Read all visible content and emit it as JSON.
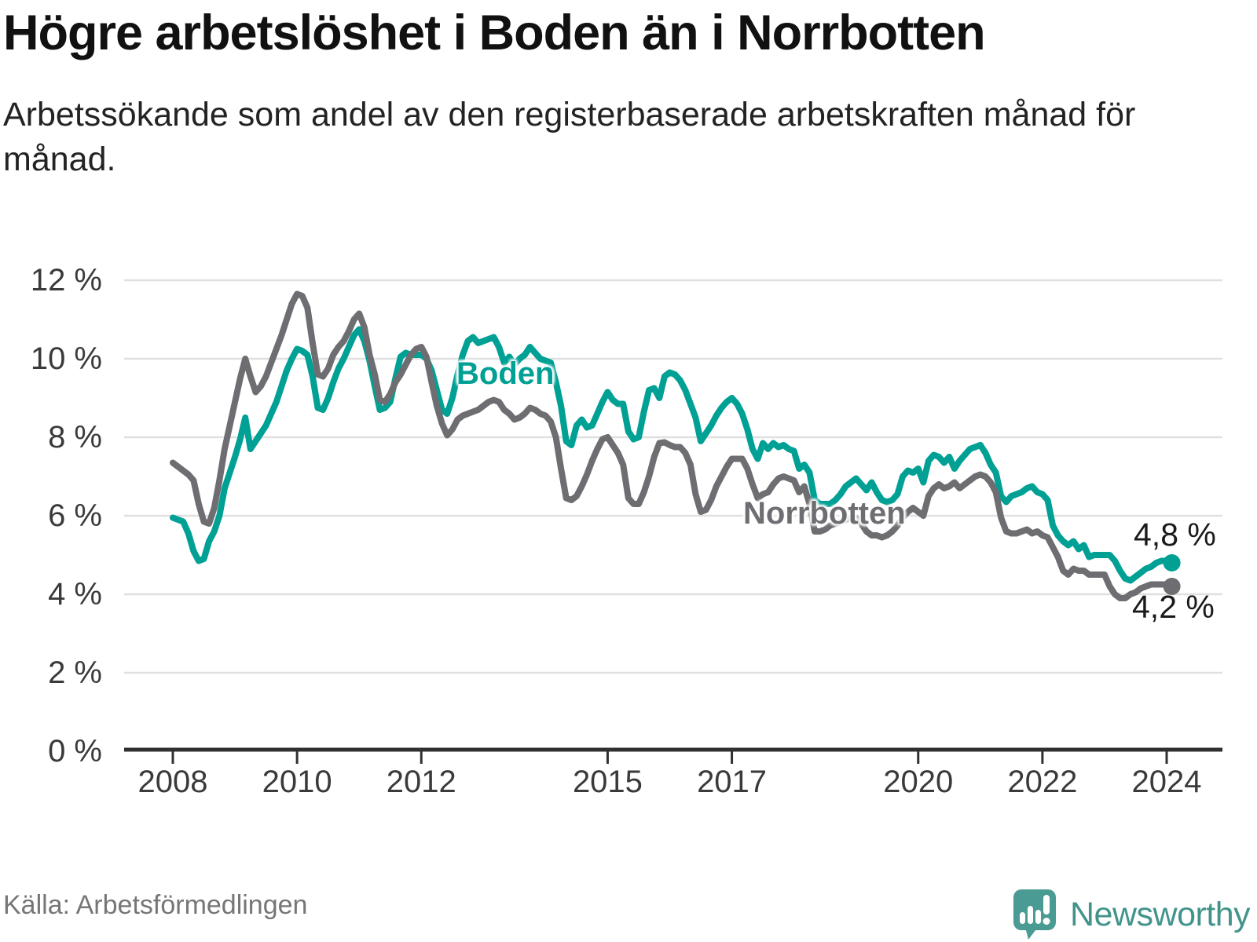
{
  "header": {
    "title": "Högre arbetslöshet i Boden än i Norrbotten",
    "subtitle": "Arbetssökande som andel av den registerbaserade arbetskraften månad för månad."
  },
  "footer": {
    "source": "Källa: Arbetsförmedlingen",
    "brand": "Newsworthy"
  },
  "colors": {
    "boden": "#00a094",
    "norrbotten": "#6e6e72",
    "gridline": "#e0e0e0",
    "axis": "#303030",
    "tick_text": "#3a3a3a",
    "title_text": "#111111",
    "source_text": "#767676",
    "brand_teal": "#4a9b93"
  },
  "chart_data": {
    "type": "line",
    "title": "Högre arbetslöshet i Boden än i Norrbotten",
    "subtitle": "Arbetssökande som andel av den registerbaserade arbetskraften månad för månad.",
    "xlabel": "",
    "ylabel": "",
    "x_start_year": 2008,
    "x_start_month": 1,
    "x_months_per_step": 1,
    "x_end_year": 2024,
    "x_end_month": 2,
    "xlim": [
      2007.2,
      2024.95
    ],
    "ylim": [
      0,
      12.4
    ],
    "grid": "horizontal",
    "legend_position": "inline-labels",
    "y_ticks": [
      0,
      2,
      4,
      6,
      8,
      10,
      12
    ],
    "y_tick_labels": [
      "0 %",
      "2 %",
      "4 %",
      "6 %",
      "8 %",
      "10 %",
      "12 %"
    ],
    "x_ticks": [
      2008,
      2010,
      2012,
      2015,
      2017,
      2020,
      2022,
      2024
    ],
    "x_tick_labels": [
      "2008",
      "2010",
      "2012",
      "2015",
      "2017",
      "2020",
      "2022",
      "2024"
    ],
    "series": [
      {
        "name": "Boden",
        "color": "#00a094",
        "end_label": "4,8 %",
        "end_value": 4.8,
        "values": [
          5.95,
          5.9,
          5.85,
          5.55,
          5.1,
          4.85,
          4.9,
          5.35,
          5.6,
          6.0,
          6.7,
          7.1,
          7.5,
          7.95,
          8.5,
          7.7,
          7.9,
          8.1,
          8.3,
          8.6,
          8.9,
          9.3,
          9.7,
          10.0,
          10.25,
          10.2,
          10.1,
          9.55,
          8.75,
          8.7,
          9.0,
          9.4,
          9.75,
          10.0,
          10.3,
          10.6,
          10.75,
          10.45,
          9.95,
          9.3,
          8.7,
          8.75,
          8.9,
          9.5,
          10.05,
          10.15,
          10.1,
          10.1,
          10.1,
          10.0,
          9.7,
          9.2,
          8.7,
          8.6,
          9.0,
          9.6,
          10.1,
          10.45,
          10.55,
          10.4,
          10.45,
          10.5,
          10.55,
          10.3,
          9.9,
          10.05,
          9.85,
          10.0,
          10.1,
          10.3,
          10.15,
          10.0,
          9.95,
          9.9,
          9.4,
          8.8,
          7.9,
          7.8,
          8.3,
          8.45,
          8.25,
          8.3,
          8.6,
          8.9,
          9.15,
          8.95,
          8.85,
          8.85,
          8.15,
          7.95,
          8.0,
          8.65,
          9.2,
          9.25,
          9.0,
          9.55,
          9.65,
          9.6,
          9.45,
          9.2,
          8.85,
          8.5,
          7.9,
          8.1,
          8.3,
          8.55,
          8.75,
          8.9,
          9.0,
          8.85,
          8.6,
          8.2,
          7.7,
          7.45,
          7.85,
          7.7,
          7.85,
          7.75,
          7.8,
          7.7,
          7.65,
          7.2,
          7.3,
          7.1,
          6.4,
          6.3,
          6.3,
          6.3,
          6.4,
          6.55,
          6.75,
          6.85,
          6.95,
          6.8,
          6.65,
          6.85,
          6.6,
          6.4,
          6.35,
          6.4,
          6.55,
          7.0,
          7.15,
          7.1,
          7.2,
          6.85,
          7.4,
          7.55,
          7.5,
          7.35,
          7.5,
          7.2,
          7.4,
          7.55,
          7.7,
          7.75,
          7.8,
          7.6,
          7.3,
          7.1,
          6.5,
          6.35,
          6.5,
          6.55,
          6.6,
          6.7,
          6.75,
          6.6,
          6.55,
          6.4,
          5.75,
          5.5,
          5.35,
          5.25,
          5.35,
          5.15,
          5.25,
          4.95,
          5.0,
          5.0,
          5.0,
          5.0,
          4.85,
          4.6,
          4.4,
          4.35,
          4.45,
          4.55,
          4.65,
          4.7,
          4.8,
          4.85,
          4.85,
          4.8
        ]
      },
      {
        "name": "Norrbotten",
        "color": "#6e6e72",
        "end_label": "4,2 %",
        "end_value": 4.2,
        "values": [
          7.35,
          7.25,
          7.15,
          7.05,
          6.9,
          6.3,
          5.85,
          5.8,
          6.2,
          6.9,
          7.7,
          8.3,
          8.9,
          9.5,
          10.0,
          9.55,
          9.15,
          9.3,
          9.55,
          9.9,
          10.25,
          10.6,
          11.0,
          11.4,
          11.65,
          11.6,
          11.3,
          10.4,
          9.6,
          9.55,
          9.75,
          10.1,
          10.3,
          10.45,
          10.7,
          11.0,
          11.15,
          10.8,
          10.1,
          9.6,
          8.95,
          8.9,
          9.1,
          9.4,
          9.6,
          9.85,
          10.1,
          10.25,
          10.3,
          10.05,
          9.4,
          8.8,
          8.35,
          8.05,
          8.2,
          8.45,
          8.55,
          8.6,
          8.65,
          8.7,
          8.8,
          8.9,
          8.95,
          8.9,
          8.7,
          8.6,
          8.45,
          8.5,
          8.6,
          8.75,
          8.7,
          8.6,
          8.55,
          8.4,
          8.0,
          7.2,
          6.45,
          6.4,
          6.5,
          6.75,
          7.05,
          7.4,
          7.7,
          7.95,
          8.0,
          7.8,
          7.6,
          7.3,
          6.45,
          6.3,
          6.3,
          6.6,
          7.0,
          7.5,
          7.85,
          7.87,
          7.8,
          7.75,
          7.75,
          7.6,
          7.3,
          6.55,
          6.1,
          6.15,
          6.4,
          6.75,
          7.0,
          7.25,
          7.45,
          7.45,
          7.45,
          7.2,
          6.8,
          6.45,
          6.55,
          6.6,
          6.8,
          6.95,
          7.0,
          6.95,
          6.9,
          6.6,
          6.75,
          6.3,
          5.6,
          5.6,
          5.65,
          5.75,
          5.8,
          5.85,
          5.9,
          5.95,
          5.95,
          5.8,
          5.6,
          5.5,
          5.5,
          5.45,
          5.5,
          5.6,
          5.75,
          5.95,
          6.1,
          6.2,
          6.1,
          6.0,
          6.5,
          6.7,
          6.8,
          6.7,
          6.75,
          6.85,
          6.7,
          6.8,
          6.9,
          7.0,
          7.05,
          7.0,
          6.85,
          6.6,
          5.95,
          5.6,
          5.55,
          5.55,
          5.6,
          5.65,
          5.55,
          5.6,
          5.5,
          5.45,
          5.2,
          4.95,
          4.6,
          4.5,
          4.65,
          4.6,
          4.6,
          4.5,
          4.5,
          4.5,
          4.5,
          4.2,
          4.0,
          3.9,
          3.9,
          4.0,
          4.05,
          4.15,
          4.2,
          4.25,
          4.25,
          4.25,
          4.25,
          4.2
        ]
      }
    ]
  }
}
